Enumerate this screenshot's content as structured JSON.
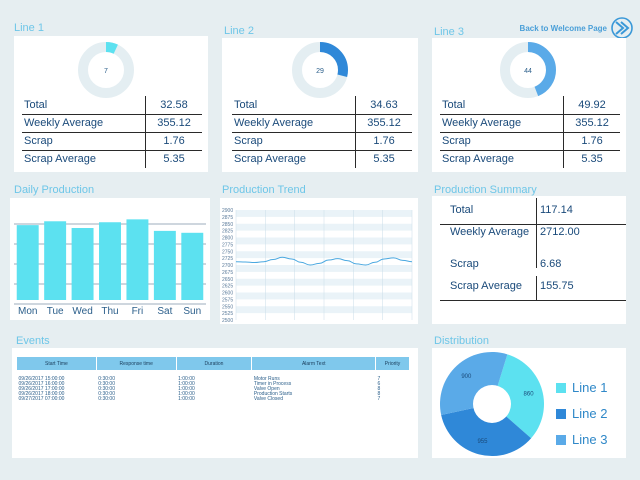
{
  "header": {
    "back_label": "Back to Welcome Page",
    "back_icon": "double-chevron-right-icon"
  },
  "lines": [
    {
      "title": "Line 1",
      "gauge_value": "7",
      "gauge_fraction": 0.07,
      "rows": [
        {
          "label": "Total",
          "value": "32.58"
        },
        {
          "label": "Weekly Average",
          "value": "355.12"
        },
        {
          "label": "Scrap",
          "value": "1.76"
        },
        {
          "label": "Scrap Average",
          "value": "5.35"
        }
      ]
    },
    {
      "title": "Line 2",
      "gauge_value": "29",
      "gauge_fraction": 0.29,
      "rows": [
        {
          "label": "Total",
          "value": "34.63"
        },
        {
          "label": "Weekly Average",
          "value": "355.12"
        },
        {
          "label": "Scrap",
          "value": "1.76"
        },
        {
          "label": "Scrap Average",
          "value": "5.35"
        }
      ]
    },
    {
      "title": "Line 3",
      "gauge_value": "44",
      "gauge_fraction": 0.44,
      "rows": [
        {
          "label": "Total",
          "value": "49.92"
        },
        {
          "label": "Weekly Average",
          "value": "355.12"
        },
        {
          "label": "Scrap",
          "value": "1.76"
        },
        {
          "label": "Scrap Average",
          "value": "5.35"
        }
      ]
    }
  ],
  "daily": {
    "title": "Daily Production",
    "chart_data": {
      "type": "bar",
      "categories": [
        "Mon",
        "Tue",
        "Wed",
        "Thu",
        "Fri",
        "Sat",
        "Sun"
      ],
      "values": [
        78,
        82,
        75,
        81,
        84,
        72,
        70
      ],
      "ylim": [
        0,
        100
      ],
      "color": "#5ce1f0"
    }
  },
  "trend": {
    "title": "Production Trend",
    "chart_data": {
      "type": "line",
      "ylim": [
        2500,
        2900
      ],
      "yticks": [
        "2900",
        "2875",
        "2850",
        "2825",
        "2800",
        "2775",
        "2750",
        "2725",
        "2700",
        "2675",
        "2650",
        "2625",
        "2600",
        "2575",
        "2550",
        "2525",
        "2500"
      ],
      "values": [
        2712,
        2711,
        2709,
        2712,
        2720,
        2728,
        2722,
        2710,
        2700,
        2706,
        2718,
        2723,
        2716,
        2704,
        2700,
        2710,
        2722,
        2726,
        2717,
        2712
      ],
      "color": "#4aa8e0"
    }
  },
  "summary": {
    "title": "Production Summary",
    "rows": [
      {
        "label": "Total",
        "value": "117.14"
      },
      {
        "label": "Weekly Average",
        "value": "2712.00"
      },
      {
        "label": "Scrap",
        "value": "6.68"
      },
      {
        "label": "Scrap Average",
        "value": "155.75"
      }
    ]
  },
  "events": {
    "title": "Events",
    "columns": [
      "Start Time",
      "Response time",
      "Duration",
      "Alarm Text",
      "Priority"
    ],
    "rows": [
      [
        "09/26/2017 15:00:00",
        "0:30:00",
        "1:00:00",
        "Motor Runs",
        "7"
      ],
      [
        "09/26/2017 16:00:00",
        "0:30:00",
        "1:00:00",
        "Timer in Process",
        "6"
      ],
      [
        "09/26/2017 17:00:00",
        "0:30:00",
        "1:00:00",
        "Valve Open",
        "8"
      ],
      [
        "09/26/2017 18:00:00",
        "0:30:00",
        "1:00:00",
        "Production Starts",
        "8"
      ],
      [
        "09/27/2017 07:00:00",
        "0:30:00",
        "1:00:00",
        "Valve Closed",
        "7"
      ]
    ]
  },
  "distribution": {
    "title": "Distribution",
    "chart_data": {
      "type": "pie",
      "slices": [
        {
          "name": "Line 1",
          "value": 860,
          "color": "#5ce1f0"
        },
        {
          "name": "Line 2",
          "value": 955,
          "color": "#2f88d8"
        },
        {
          "name": "Line 3",
          "value": 900,
          "color": "#5aaae8"
        }
      ]
    }
  }
}
